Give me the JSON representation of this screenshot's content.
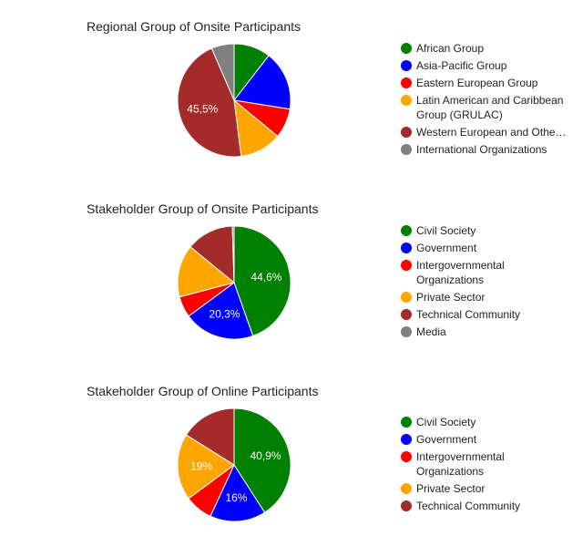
{
  "chart_data": [
    {
      "type": "pie",
      "title": "Regional Group of Onsite Participants",
      "slices": [
        {
          "label": "African Group",
          "value": 10.5,
          "color": "#008000"
        },
        {
          "label": "Asia-Pacific Group",
          "value": 17.0,
          "color": "#0000ff"
        },
        {
          "label": "Eastern European Group",
          "value": 8.5,
          "color": "#ff0000"
        },
        {
          "label": "Latin American and Caribbean Group (GRULAC)",
          "value": 12.0,
          "color": "#ffa500"
        },
        {
          "label": "Western European and Other States",
          "value": 45.5,
          "color": "#a52a2a",
          "data_label": "45,5%"
        },
        {
          "label": "International Organizations",
          "value": 6.5,
          "color": "#808080"
        }
      ],
      "legend": [
        {
          "lines": [
            "African Group"
          ],
          "color": "#008000"
        },
        {
          "lines": [
            "Asia-Pacific Group"
          ],
          "color": "#0000ff"
        },
        {
          "lines": [
            "Eastern European Group"
          ],
          "color": "#ff0000"
        },
        {
          "lines": [
            "Latin American and Caribbean",
            "Group (GRULAC)"
          ],
          "color": "#ffa500"
        },
        {
          "lines": [
            "Western European and Othe…"
          ],
          "color": "#a52a2a"
        },
        {
          "lines": [
            "International Organizations"
          ],
          "color": "#808080"
        }
      ]
    },
    {
      "type": "pie",
      "title": "Stakeholder Group of Onsite Participants",
      "slices": [
        {
          "label": "Civil Society",
          "value": 44.6,
          "color": "#008000",
          "data_label": "44,6%"
        },
        {
          "label": "Government",
          "value": 20.3,
          "color": "#0000ff",
          "data_label": "20,3%"
        },
        {
          "label": "Intergovernmental Organizations",
          "value": 6.0,
          "color": "#ff0000"
        },
        {
          "label": "Private Sector",
          "value": 15.0,
          "color": "#ffa500"
        },
        {
          "label": "Technical Community",
          "value": 13.6,
          "color": "#a52a2a"
        },
        {
          "label": "Media",
          "value": 0.5,
          "color": "#808080"
        }
      ],
      "legend": [
        {
          "lines": [
            "Civil Society"
          ],
          "color": "#008000"
        },
        {
          "lines": [
            "Government"
          ],
          "color": "#0000ff"
        },
        {
          "lines": [
            "Intergovernmental",
            "Organizations"
          ],
          "color": "#ff0000"
        },
        {
          "lines": [
            "Private Sector"
          ],
          "color": "#ffa500"
        },
        {
          "lines": [
            "Technical Community"
          ],
          "color": "#a52a2a"
        },
        {
          "lines": [
            "Media"
          ],
          "color": "#808080"
        }
      ]
    },
    {
      "type": "pie",
      "title": "Stakeholder Group of Online Participants",
      "slices": [
        {
          "label": "Civil Society",
          "value": 40.9,
          "color": "#008000",
          "data_label": "40,9%"
        },
        {
          "label": "Government",
          "value": 16.0,
          "color": "#0000ff",
          "data_label": "16%"
        },
        {
          "label": "Intergovernmental Organizations",
          "value": 8.0,
          "color": "#ff0000"
        },
        {
          "label": "Private Sector",
          "value": 19.0,
          "color": "#ffa500",
          "data_label": "19%"
        },
        {
          "label": "Technical Community",
          "value": 16.1,
          "color": "#a52a2a"
        }
      ],
      "legend": [
        {
          "lines": [
            "Civil Society"
          ],
          "color": "#008000"
        },
        {
          "lines": [
            "Government"
          ],
          "color": "#0000ff"
        },
        {
          "lines": [
            "Intergovernmental",
            "Organizations"
          ],
          "color": "#ff0000"
        },
        {
          "lines": [
            "Private Sector"
          ],
          "color": "#ffa500"
        },
        {
          "lines": [
            "Technical Community"
          ],
          "color": "#a52a2a"
        }
      ]
    }
  ]
}
